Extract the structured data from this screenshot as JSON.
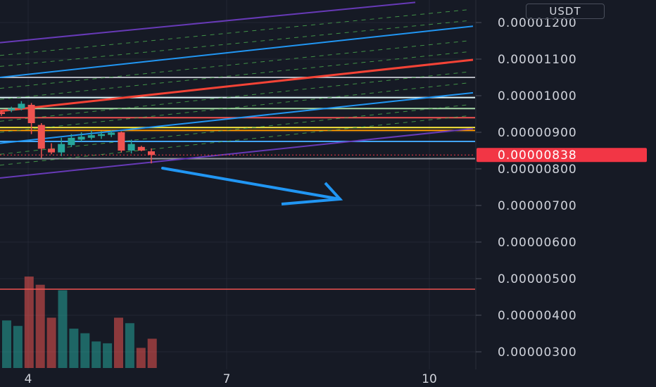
{
  "currency_badge": "USDT",
  "colors": {
    "background": "#161a25",
    "grid": "#232733",
    "up": "#26a69a",
    "down": "#ef5350",
    "arrow": "#2196f3",
    "price_tag": "#f23645"
  },
  "chart_data": {
    "type": "candlestick",
    "y_axis": {
      "ticks": [
        "0.00001200",
        "0.00001100",
        "0.00001000",
        "0.00000900",
        "0.00000800",
        "0.00000700",
        "0.00000600",
        "0.00000500",
        "0.00000400",
        "0.00000300"
      ],
      "ylim": [
        2.6e-06,
        1.3e-05
      ]
    },
    "x_axis": {
      "ticks": [
        "4",
        "7",
        "10"
      ]
    },
    "last_price": "0.00000838",
    "candles": [
      {
        "o": 9.55e-06,
        "h": 9.6e-06,
        "l": 9.45e-06,
        "c": 9.5e-06
      },
      {
        "o": 9.6e-06,
        "h": 9.7e-06,
        "l": 9.55e-06,
        "c": 9.65e-06
      },
      {
        "o": 9.65e-06,
        "h": 9.85e-06,
        "l": 9.6e-06,
        "c": 9.78e-06
      },
      {
        "o": 9.75e-06,
        "h": 9.8e-06,
        "l": 8.95e-06,
        "c": 9.25e-06
      },
      {
        "o": 9.2e-06,
        "h": 9.25e-06,
        "l": 8.3e-06,
        "c": 8.55e-06
      },
      {
        "o": 8.55e-06,
        "h": 8.7e-06,
        "l": 8.4e-06,
        "c": 8.45e-06
      },
      {
        "o": 8.45e-06,
        "h": 8.85e-06,
        "l": 8.35e-06,
        "c": 8.68e-06
      },
      {
        "o": 8.65e-06,
        "h": 8.95e-06,
        "l": 8.6e-06,
        "c": 8.85e-06
      },
      {
        "o": 8.8e-06,
        "h": 9e-06,
        "l": 8.75e-06,
        "c": 8.88e-06
      },
      {
        "o": 8.85e-06,
        "h": 9.05e-06,
        "l": 8.8e-06,
        "c": 8.92e-06
      },
      {
        "o": 8.9e-06,
        "h": 9.03e-06,
        "l": 8.82e-06,
        "c": 8.95e-06
      },
      {
        "o": 8.93e-06,
        "h": 9.06e-06,
        "l": 8.87e-06,
        "c": 8.99e-06
      },
      {
        "o": 9e-06,
        "h": 9.02e-06,
        "l": 8.45e-06,
        "c": 8.5e-06
      },
      {
        "o": 8.5e-06,
        "h": 8.8e-06,
        "l": 8.42e-06,
        "c": 8.68e-06
      },
      {
        "o": 8.6e-06,
        "h": 8.63e-06,
        "l": 8.48e-06,
        "c": 8.5e-06
      },
      {
        "o": 8.48e-06,
        "h": 8.56e-06,
        "l": 8.15e-06,
        "c": 8.38e-06
      }
    ],
    "volume_bars": [
      {
        "v": 0.52,
        "up": true
      },
      {
        "v": 0.46,
        "up": true
      },
      {
        "v": 1.0,
        "up": false
      },
      {
        "v": 0.91,
        "up": false
      },
      {
        "v": 0.55,
        "up": false
      },
      {
        "v": 0.85,
        "up": true
      },
      {
        "v": 0.43,
        "up": true
      },
      {
        "v": 0.38,
        "up": true
      },
      {
        "v": 0.29,
        "up": true
      },
      {
        "v": 0.27,
        "up": true
      },
      {
        "v": 0.55,
        "up": false
      },
      {
        "v": 0.49,
        "up": true
      },
      {
        "v": 0.22,
        "up": false
      },
      {
        "v": 0.32,
        "up": false
      }
    ],
    "horizontal_levels": [
      {
        "price": 1.05e-05,
        "color": "#b2b5be"
      },
      {
        "price": 9.95e-06,
        "color": "#e0f7fa"
      },
      {
        "price": 9.65e-06,
        "color": "#a5d6a7"
      },
      {
        "price": 9.4e-06,
        "color": "#ef5350"
      },
      {
        "price": 9.13e-06,
        "color": "#ffeb3b"
      },
      {
        "price": 9.05e-06,
        "color": "#ff9800"
      },
      {
        "price": 8.75e-06,
        "color": "#42a5f5"
      },
      {
        "price": 8.28e-06,
        "color": "#9598a1"
      }
    ],
    "volume_level_color": "#ef5350",
    "trend_lines": [
      {
        "from": [
          0,
          1.145e-05
        ],
        "to": [
          590,
          1.255e-05
        ],
        "color": "#673ab7",
        "w": 2
      },
      {
        "from": [
          0,
          1.05e-05
        ],
        "to": [
          672,
          1.19e-05
        ],
        "color": "#2196f3",
        "w": 2
      },
      {
        "from": [
          0,
          9.58e-06
        ],
        "to": [
          672,
          1.098e-05
        ],
        "color": "#f44336",
        "w": 3
      },
      {
        "from": [
          0,
          8.7e-06
        ],
        "to": [
          672,
          1.008e-05
        ],
        "color": "#2196f3",
        "w": 2
      },
      {
        "from": [
          0,
          7.75e-06
        ],
        "to": [
          672,
          9.1e-06
        ],
        "color": "#673ab7",
        "w": 2
      }
    ],
    "channel_lines": [
      {
        "from": [
          0,
          1.11e-05
        ],
        "to": [
          665,
          1.235e-05
        ]
      },
      {
        "from": [
          0,
          1.08e-05
        ],
        "to": [
          665,
          1.205e-05
        ]
      },
      {
        "from": [
          0,
          1.02e-05
        ],
        "to": [
          665,
          1.15e-05
        ]
      },
      {
        "from": [
          0,
          9.9e-06
        ],
        "to": [
          665,
          1.12e-05
        ]
      },
      {
        "from": [
          0,
          9.3e-06
        ],
        "to": [
          665,
          1.065e-05
        ]
      },
      {
        "from": [
          0,
          9e-06
        ],
        "to": [
          665,
          1.035e-05
        ]
      },
      {
        "from": [
          0,
          8.4e-06
        ],
        "to": [
          665,
          9.75e-06
        ]
      },
      {
        "from": [
          0,
          8.1e-06
        ],
        "to": [
          665,
          9.45e-06
        ]
      }
    ]
  }
}
